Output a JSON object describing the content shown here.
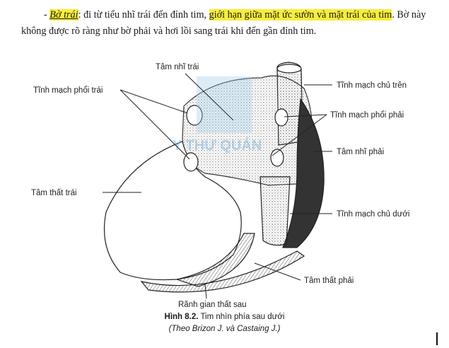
{
  "paragraph": {
    "bullet": "-",
    "term": "Bờ trái",
    "colon": ":",
    "text_before_highlight": " đi từ tiểu nhĩ trái đến đỉnh tim, ",
    "highlight": "giới hạn giữa mặt ức sườn và mặt trái của tim",
    "text_after_highlight": ". Bờ này không được rõ ràng như bờ phải và hơi lồi sang trái khi đến gần đỉnh tim."
  },
  "figure": {
    "labels": {
      "left_atrium": "Tâm nhĩ trái",
      "left_pulmonary_veins": "Tĩnh mạch phổi trái",
      "superior_vena_cava": "Tĩnh mạch chủ trên",
      "right_pulmonary_veins": "Tĩnh mạch phổi phải",
      "right_atrium": "Tâm nhĩ phải",
      "left_ventricle": "Tâm thất trái",
      "inferior_vena_cava": "Tĩnh mạch chủ dưới",
      "right_ventricle": "Tâm thất phải",
      "posterior_interventricular_groove": "Rãnh gian thất sau"
    },
    "watermark": "Y THƯ QUÁN",
    "watermark_color": "#7fb6de"
  },
  "caption": {
    "figure_number": "Hình 8.2.",
    "title": "Tim nhìn phía sau dưới",
    "source": "(Theo Brizon J. và Castaing J.)"
  }
}
